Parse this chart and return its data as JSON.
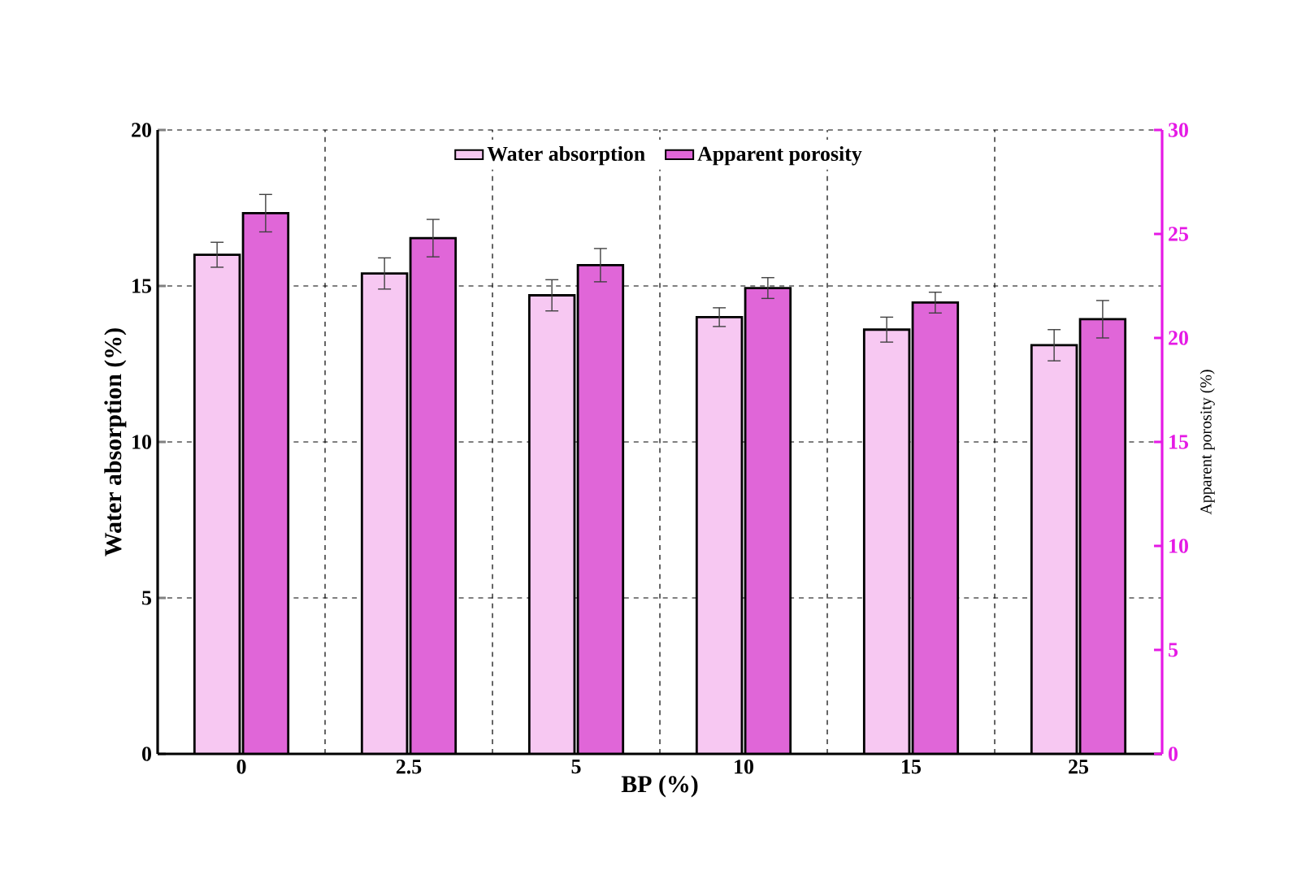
{
  "chart_data": {
    "type": "bar",
    "xlabel": "BP (%)",
    "ylabel": "Water absorption  (%)",
    "y2label": "Apparent porosity (%)",
    "categories": [
      "0",
      "2.5",
      "5",
      "10",
      "15",
      "25"
    ],
    "ylim": [
      0,
      20
    ],
    "yticks": [
      0,
      5,
      10,
      15,
      20
    ],
    "y2lim": [
      0,
      30
    ],
    "y2ticks": [
      0,
      5,
      10,
      15,
      20,
      25,
      30
    ],
    "grid": true,
    "legend": "top",
    "series": [
      {
        "name": "Water absorption",
        "color": "#f7c8f2",
        "values": [
          16.0,
          15.4,
          14.7,
          14.0,
          13.6,
          13.1
        ],
        "errors": [
          0.4,
          0.5,
          0.5,
          0.3,
          0.4,
          0.5
        ]
      },
      {
        "name": "Apparent porosity",
        "color": "#e066d8",
        "axis": "y2",
        "values": [
          26.0,
          24.8,
          23.5,
          22.4,
          21.7,
          20.9
        ],
        "errors": [
          0.9,
          0.9,
          0.8,
          0.5,
          0.5,
          0.9
        ]
      }
    ]
  }
}
